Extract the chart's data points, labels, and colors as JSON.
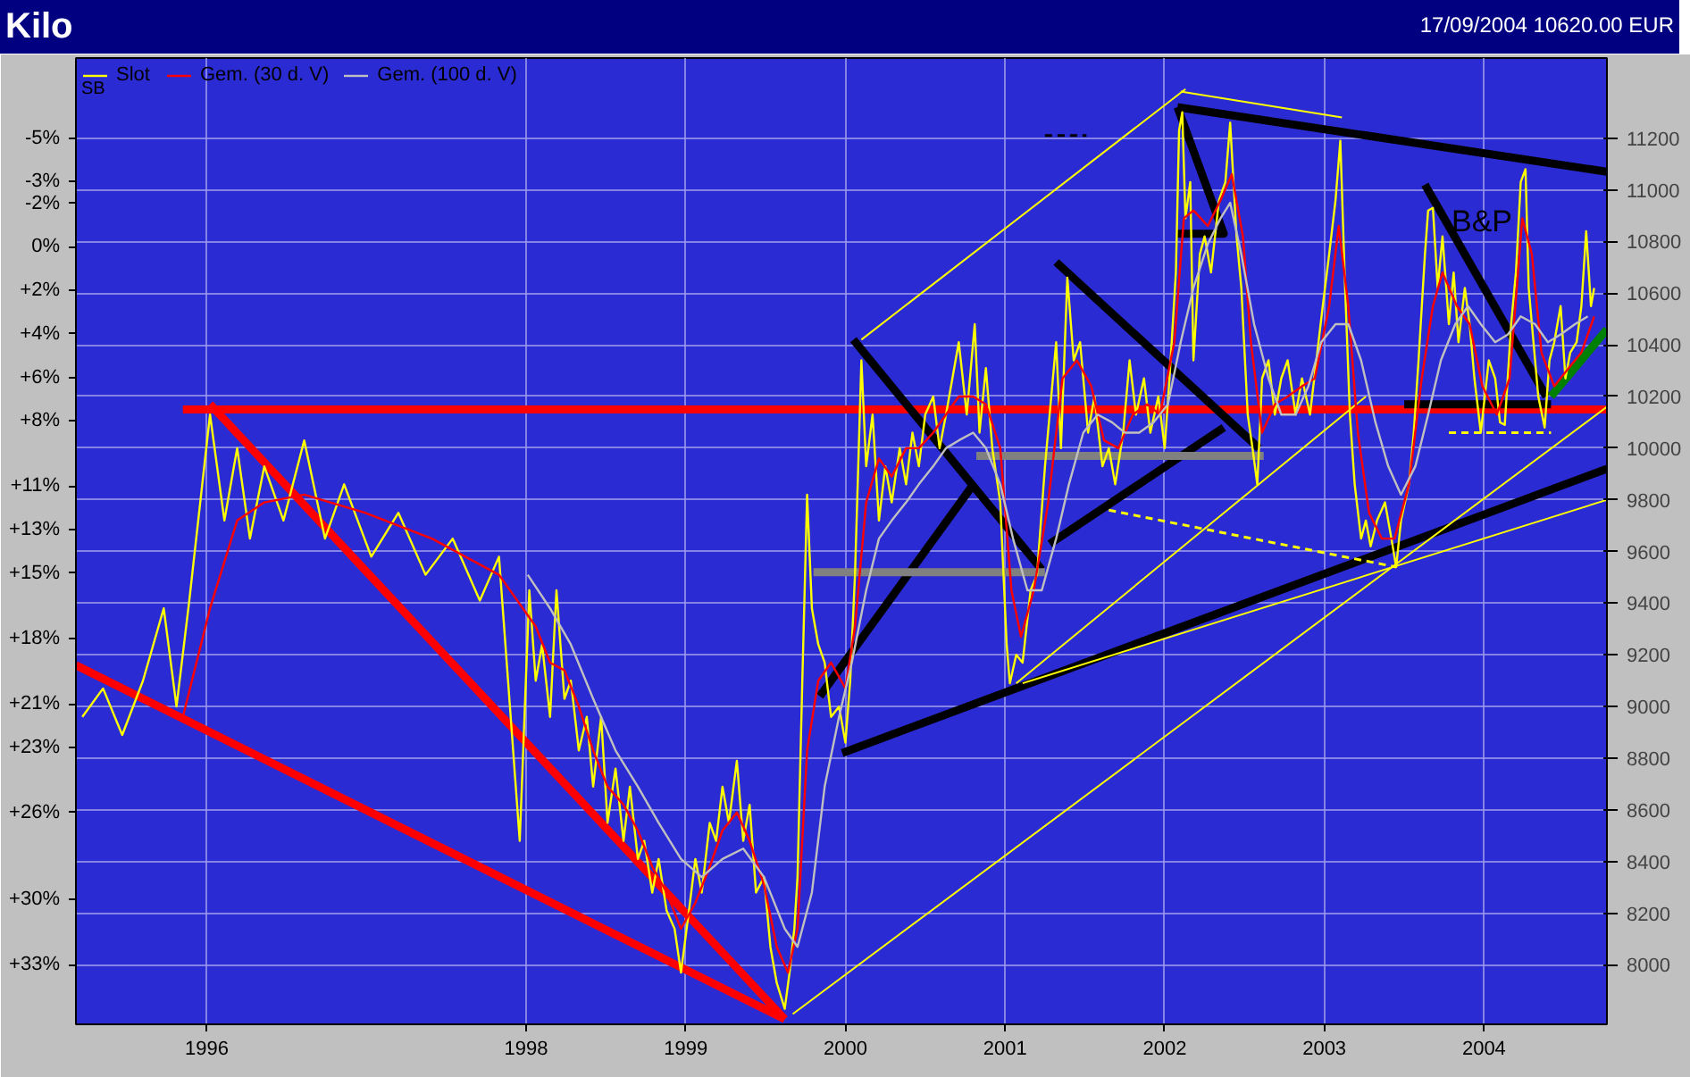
{
  "chart_data": {
    "type": "line",
    "title": "Kilo",
    "subtitle": "17/09/2004 10620.00 EUR",
    "annotations": [
      "SB",
      "B&P"
    ],
    "xlim": [
      1995.18,
      2004.77
    ],
    "xticks": [
      1996,
      1998,
      1999,
      2000,
      2001,
      2002,
      2003,
      2004
    ],
    "ylim": [
      7770,
      11510
    ],
    "yticks": [
      11200,
      11000,
      10800,
      10600,
      10400,
      10200,
      10000,
      9800,
      9600,
      9400,
      9200,
      9000,
      8800,
      8600,
      8400,
      8200,
      8000
    ],
    "y2lim": [
      35.73,
      -8.68
    ],
    "y2ticks": [
      {
        "value": -5,
        "label": "-5%"
      },
      {
        "value": -3,
        "label": "-3%"
      },
      {
        "value": -2,
        "label": "-2%"
      },
      {
        "value": 0,
        "label": "0%"
      },
      {
        "value": 2,
        "label": "+2%"
      },
      {
        "value": 4,
        "label": "+4%"
      },
      {
        "value": 6,
        "label": "+6%"
      },
      {
        "value": 8,
        "label": "+8%"
      },
      {
        "value": 11,
        "label": "+11%"
      },
      {
        "value": 13,
        "label": "+13%"
      },
      {
        "value": 15,
        "label": "+15%"
      },
      {
        "value": 18,
        "label": "+18%"
      },
      {
        "value": 21,
        "label": "+21%"
      },
      {
        "value": 23,
        "label": "+23%"
      },
      {
        "value": 26,
        "label": "+26%"
      },
      {
        "value": 30,
        "label": "+30%"
      },
      {
        "value": 33,
        "label": "+33%"
      }
    ],
    "grid": true,
    "legend": "top left",
    "line_style": "solid",
    "series": [
      {
        "name": "Slot",
        "color": "#ffff00",
        "x": [
          1995.22,
          1995.35,
          1995.47,
          1995.6,
          1995.73,
          1995.81,
          1995.89,
          1996.02,
          1996.11,
          1996.19,
          1996.27,
          1996.36,
          1996.48,
          1996.61,
          1996.74,
          1996.86,
          1997.03,
          1997.2,
          1997.37,
          1997.54,
          1997.71,
          1997.83,
          1997.96,
          1998.02,
          1998.06,
          1998.1,
          1998.15,
          1998.19,
          1998.24,
          1998.28,
          1998.33,
          1998.38,
          1998.42,
          1998.47,
          1998.51,
          1998.56,
          1998.61,
          1998.65,
          1998.7,
          1998.74,
          1998.79,
          1998.83,
          1998.88,
          1998.93,
          1998.97,
          1999.02,
          1999.06,
          1999.1,
          1999.15,
          1999.19,
          1999.23,
          1999.27,
          1999.32,
          1999.36,
          1999.4,
          1999.44,
          1999.49,
          1999.53,
          1999.57,
          1999.62,
          1999.65,
          1999.68,
          1999.7,
          1999.73,
          1999.76,
          1999.79,
          1999.83,
          1999.87,
          1999.91,
          1999.96,
          2000.0,
          2000.03,
          2000.06,
          2000.1,
          2000.13,
          2000.17,
          2000.21,
          2000.25,
          2000.29,
          2000.34,
          2000.38,
          2000.42,
          2000.46,
          2000.5,
          2000.55,
          2000.59,
          2000.63,
          2000.67,
          2000.71,
          2000.76,
          2000.81,
          2000.84,
          2000.88,
          2000.92,
          2000.97,
          2001.01,
          2001.03,
          2001.07,
          2001.11,
          2001.16,
          2001.2,
          2001.25,
          2001.32,
          2001.35,
          2001.39,
          2001.43,
          2001.47,
          2001.52,
          2001.56,
          2001.61,
          2001.65,
          2001.69,
          2001.74,
          2001.78,
          2001.82,
          2001.87,
          2001.91,
          2001.96,
          2002.0,
          2002.03,
          2002.07,
          2002.09,
          2002.11,
          2002.13,
          2002.16,
          2002.18,
          2002.22,
          2002.25,
          2002.29,
          2002.34,
          2002.38,
          2002.41,
          2002.45,
          2002.48,
          2002.52,
          2002.55,
          2002.58,
          2002.61,
          2002.65,
          2002.69,
          2002.73,
          2002.77,
          2002.82,
          2002.86,
          2002.91,
          2002.95,
          2002.99,
          2003.03,
          2003.07,
          2003.1,
          2003.13,
          2003.16,
          2003.19,
          2003.23,
          2003.26,
          2003.29,
          2003.33,
          2003.38,
          2003.42,
          2003.45,
          2003.48,
          2003.53,
          2003.56,
          2003.59,
          2003.63,
          2003.65,
          2003.68,
          2003.71,
          2003.74,
          2003.78,
          2003.81,
          2003.84,
          2003.88,
          2003.91,
          2003.94,
          2003.98,
          2004.03,
          2004.07,
          2004.1,
          2004.13,
          2004.17,
          2004.2,
          2004.23,
          2004.26,
          2004.28,
          2004.32,
          2004.34,
          2004.38,
          2004.41,
          2004.44,
          2004.48,
          2004.51,
          2004.54,
          2004.58,
          2004.61,
          2004.64,
          2004.67,
          2004.69
        ],
        "values": [
          8960,
          9070,
          8890,
          9100,
          9380,
          9000,
          9410,
          10130,
          9720,
          10000,
          9650,
          9930,
          9720,
          10030,
          9650,
          9860,
          9580,
          9750,
          9510,
          9650,
          9410,
          9580,
          8480,
          9450,
          9100,
          9240,
          8960,
          9450,
          9030,
          9100,
          8830,
          8960,
          8690,
          8960,
          8550,
          8760,
          8480,
          8690,
          8410,
          8480,
          8280,
          8410,
          8210,
          8140,
          7970,
          8210,
          8410,
          8280,
          8550,
          8480,
          8690,
          8550,
          8790,
          8480,
          8620,
          8280,
          8340,
          8070,
          7930,
          7830,
          7970,
          8140,
          8340,
          9100,
          9820,
          9380,
          9240,
          9170,
          8960,
          9000,
          8860,
          9100,
          9510,
          10340,
          9930,
          10130,
          9720,
          9930,
          9790,
          10000,
          9860,
          10060,
          9930,
          10130,
          10200,
          10000,
          10130,
          10270,
          10410,
          10130,
          10480,
          10060,
          10310,
          10000,
          9790,
          9240,
          9090,
          9200,
          9170,
          9450,
          9510,
          9930,
          10410,
          10000,
          10660,
          10340,
          10410,
          10060,
          10200,
          9930,
          10000,
          9860,
          10060,
          10340,
          10130,
          10270,
          10060,
          10200,
          10000,
          10270,
          10680,
          11230,
          11300,
          10890,
          11030,
          10340,
          10750,
          10820,
          10680,
          10960,
          11030,
          11260,
          10820,
          10620,
          10130,
          10000,
          9860,
          10270,
          10340,
          10130,
          10270,
          10340,
          10130,
          10270,
          10130,
          10340,
          10550,
          10750,
          10960,
          11190,
          10620,
          10130,
          9860,
          9650,
          9720,
          9620,
          9720,
          9790,
          9650,
          9540,
          9720,
          9860,
          10060,
          10340,
          10750,
          10920,
          10930,
          10620,
          10820,
          10480,
          10680,
          10410,
          10620,
          10480,
          10270,
          10060,
          10340,
          10270,
          10100,
          10090,
          10480,
          10680,
          11030,
          11080,
          10620,
          10340,
          10200,
          10080,
          10340,
          10410,
          10550,
          10270,
          10370,
          10410,
          10550,
          10840,
          10550,
          10620
        ]
      },
      {
        "name": "Gem. (30 d. V)",
        "color": "#ff0000",
        "x": [
          1995.85,
          1996.02,
          1996.19,
          1996.36,
          1996.61,
          1996.99,
          1997.41,
          1997.83,
          1998.06,
          1998.15,
          1998.24,
          1998.33,
          1998.42,
          1998.51,
          1998.61,
          1998.7,
          1998.79,
          1998.88,
          1998.97,
          1999.06,
          1999.15,
          1999.23,
          1999.32,
          1999.4,
          1999.49,
          1999.57,
          1999.64,
          1999.7,
          1999.76,
          1999.83,
          1999.91,
          2000.0,
          2000.06,
          2000.13,
          2000.21,
          2000.29,
          2000.38,
          2000.46,
          2000.55,
          2000.63,
          2000.71,
          2000.8,
          2000.88,
          2000.97,
          2001.04,
          2001.1,
          2001.18,
          2001.27,
          2001.36,
          2001.45,
          2001.54,
          2001.62,
          2001.71,
          2001.8,
          2001.89,
          2001.97,
          2002.06,
          2002.12,
          2002.18,
          2002.27,
          2002.35,
          2002.42,
          2002.49,
          2002.54,
          2002.61,
          2002.69,
          2002.77,
          2002.86,
          2002.94,
          2003.03,
          2003.09,
          2003.15,
          2003.21,
          2003.28,
          2003.36,
          2003.44,
          2003.53,
          2003.61,
          2003.68,
          2003.74,
          2003.83,
          2003.91,
          2003.99,
          2004.08,
          2004.16,
          2004.24,
          2004.3,
          2004.36,
          2004.44,
          2004.53,
          2004.61,
          2004.69
        ],
        "values": [
          8960,
          9380,
          9720,
          9790,
          9820,
          9750,
          9650,
          9510,
          9310,
          9170,
          9140,
          9000,
          8830,
          8690,
          8620,
          8520,
          8380,
          8280,
          8140,
          8240,
          8380,
          8520,
          8590,
          8480,
          8310,
          8070,
          7970,
          8140,
          8830,
          9100,
          9170,
          9070,
          9310,
          9790,
          9960,
          9890,
          10000,
          10000,
          10060,
          10130,
          10200,
          10200,
          10170,
          10000,
          9450,
          9270,
          9450,
          9790,
          10270,
          10340,
          10240,
          10030,
          10000,
          10130,
          10170,
          10130,
          10410,
          10890,
          10920,
          10860,
          10960,
          11060,
          10820,
          10410,
          10060,
          10170,
          10200,
          10240,
          10270,
          10550,
          10860,
          10550,
          10060,
          9750,
          9650,
          9650,
          9860,
          10270,
          10550,
          10680,
          10550,
          10480,
          10240,
          10130,
          10270,
          10890,
          10750,
          10370,
          10240,
          10310,
          10370,
          10510
        ]
      },
      {
        "name": "Gem. (100 d. V)",
        "color": "#c0c0c0",
        "x": [
          1998.01,
          1998.15,
          1998.28,
          1998.42,
          1998.56,
          1998.7,
          1998.83,
          1998.97,
          1999.1,
          1999.23,
          1999.36,
          1999.49,
          1999.62,
          1999.7,
          1999.79,
          1999.87,
          1999.96,
          2000.04,
          2000.13,
          2000.21,
          2000.29,
          2000.38,
          2000.46,
          2000.55,
          2000.63,
          2000.71,
          2000.8,
          2000.88,
          2000.97,
          2001.05,
          2001.14,
          2001.23,
          2001.32,
          2001.4,
          2001.49,
          2001.58,
          2001.67,
          2001.75,
          2001.84,
          2001.93,
          2002.02,
          2002.1,
          2002.18,
          2002.27,
          2002.35,
          2002.41,
          2002.48,
          2002.56,
          2002.65,
          2002.73,
          2002.82,
          2002.9,
          2002.98,
          2003.07,
          2003.15,
          2003.23,
          2003.32,
          2003.4,
          2003.48,
          2003.57,
          2003.65,
          2003.73,
          2003.82,
          2003.9,
          2003.98,
          2004.07,
          2004.15,
          2004.23,
          2004.32,
          2004.4,
          2004.48,
          2004.57,
          2004.65
        ],
        "values": [
          9510,
          9380,
          9240,
          9030,
          8830,
          8690,
          8550,
          8410,
          8340,
          8410,
          8450,
          8340,
          8140,
          8070,
          8280,
          8690,
          8960,
          9170,
          9450,
          9650,
          9720,
          9790,
          9860,
          9930,
          10000,
          10030,
          10060,
          10000,
          9860,
          9650,
          9450,
          9450,
          9650,
          9860,
          10060,
          10130,
          10100,
          10060,
          10060,
          10100,
          10170,
          10410,
          10620,
          10790,
          10890,
          10950,
          10750,
          10480,
          10270,
          10130,
          10130,
          10240,
          10410,
          10480,
          10480,
          10340,
          10100,
          9930,
          9820,
          9930,
          10130,
          10340,
          10480,
          10550,
          10480,
          10410,
          10440,
          10510,
          10480,
          10410,
          10440,
          10480,
          10510
        ]
      },
      {
        "color": "#ff0000",
        "x": [
          1996.02,
          1999.62
        ],
        "values": [
          10170,
          7790
        ]
      },
      {
        "color": "#ff0000",
        "x": [
          1995.18,
          1999.62
        ],
        "values": [
          9160,
          7790
        ]
      },
      {
        "color": "#ff0000",
        "x": [
          1995.85,
          2004.77
        ],
        "values": [
          10150,
          10150
        ]
      },
      {
        "color": "#000000",
        "x": [
          2002.08,
          2004.77
        ],
        "values": [
          11320,
          11070
        ]
      },
      {
        "color": "#000000",
        "x": [
          1999.98,
          2004.77
        ],
        "values": [
          8820,
          9920
        ]
      },
      {
        "color": "#000000",
        "x": [
          1999.84,
          2000.79
        ],
        "values": [
          9040,
          9850
        ]
      },
      {
        "color": "#000000",
        "x": [
          2000.05,
          2001.23
        ],
        "values": [
          10420,
          9530
        ]
      },
      {
        "color": "#000000",
        "x": [
          2001.28,
          2002.37
        ],
        "values": [
          9630,
          10080
        ]
      },
      {
        "color": "#000000",
        "x": [
          2001.32,
          2002.59
        ],
        "values": [
          10720,
          10000
        ]
      },
      {
        "color": "#000000",
        "x": [
          2003.63,
          2004.39
        ],
        "values": [
          11020,
          10200
        ]
      },
      {
        "color": "#000000",
        "x": [
          2003.5,
          2004.42
        ],
        "values": [
          10170,
          10170
        ]
      },
      {
        "color": "#000000",
        "x": [
          2002.08,
          2002.37,
          2002.08
        ],
        "values": [
          11320,
          10830,
          10830
        ]
      },
      {
        "color": "#000000",
        "x": [
          2001.25,
          2001.51
        ],
        "values": [
          11210,
          11210
        ],
        "line_style": "dashed"
      },
      {
        "color": "#008000",
        "x": [
          2004.42,
          2004.77
        ],
        "values": [
          10200,
          10460
        ]
      },
      {
        "color": "#808080",
        "x": [
          1999.8,
          2001.25
        ],
        "values": [
          9520,
          9520
        ]
      },
      {
        "color": "#808080",
        "x": [
          2000.82,
          2002.62
        ],
        "values": [
          9970,
          9970
        ]
      },
      {
        "color": "#ffff00",
        "x": [
          2000.1,
          2002.13
        ],
        "values": [
          10420,
          11390
        ]
      },
      {
        "color": "#ffff00",
        "x": [
          1999.67,
          2004.77
        ],
        "values": [
          7810,
          10160
        ]
      },
      {
        "color": "#ffff00",
        "x": [
          2001.07,
          2003.26
        ],
        "values": [
          9090,
          10200
        ]
      },
      {
        "color": "#ffff00",
        "x": [
          2001.11,
          2004.77
        ],
        "values": [
          9090,
          9800
        ]
      },
      {
        "color": "#ffff00",
        "x": [
          2002.1,
          2003.11
        ],
        "values": [
          11380,
          11280
        ]
      },
      {
        "color": "#ffff00",
        "x": [
          2001.65,
          2003.45
        ],
        "values": [
          9760,
          9540
        ],
        "line_style": "dashed"
      },
      {
        "color": "#ffff00",
        "x": [
          2003.78,
          2004.42
        ],
        "values": [
          10060,
          10060
        ],
        "line_style": "dashed"
      }
    ]
  }
}
